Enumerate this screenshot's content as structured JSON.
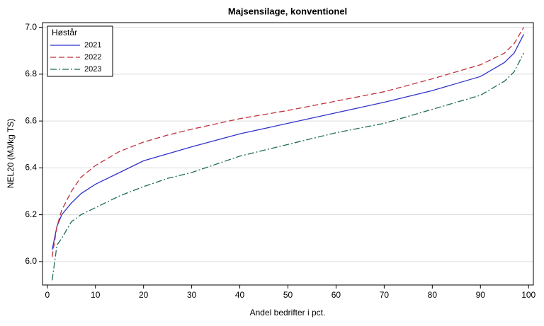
{
  "chart_data": {
    "type": "line",
    "title": "Majsensilage, konventionel",
    "xlabel": "Andel bedrifter i pct.",
    "ylabel": "NEL20 (MJ/kg TS)",
    "legend_title": "Høstår",
    "legend": "upper left",
    "grid": true,
    "x": [
      1,
      2,
      3,
      5,
      7,
      10,
      15,
      20,
      25,
      30,
      40,
      50,
      60,
      70,
      80,
      90,
      95,
      97,
      99
    ],
    "series": [
      {
        "name": "2021",
        "color": "#3333cc",
        "dash": "solid",
        "values": [
          6.05,
          6.15,
          6.2,
          6.25,
          6.29,
          6.33,
          6.38,
          6.43,
          6.46,
          6.49,
          6.545,
          6.59,
          6.635,
          6.68,
          6.73,
          6.79,
          6.85,
          6.89,
          6.97
        ]
      },
      {
        "name": "2022",
        "color": "#c0303c",
        "dash": "dashed",
        "values": [
          6.02,
          6.15,
          6.22,
          6.3,
          6.36,
          6.41,
          6.47,
          6.51,
          6.54,
          6.565,
          6.61,
          6.645,
          6.685,
          6.725,
          6.78,
          6.84,
          6.89,
          6.93,
          7.0
        ]
      },
      {
        "name": "2023",
        "color": "#1f6b5a",
        "dash": "dashdot",
        "values": [
          5.92,
          6.07,
          6.1,
          6.17,
          6.2,
          6.23,
          6.28,
          6.32,
          6.355,
          6.38,
          6.45,
          6.5,
          6.55,
          6.59,
          6.65,
          6.71,
          6.77,
          6.81,
          6.89
        ]
      }
    ],
    "xlim": [
      -1,
      101
    ],
    "xticks": [
      0,
      10,
      20,
      30,
      40,
      50,
      60,
      70,
      80,
      90,
      100
    ],
    "ylim": [
      5.9,
      7.02
    ],
    "yticks": [
      {
        "value": 6,
        "label": "6.0"
      },
      6.2,
      6.4,
      6.6,
      6.8,
      {
        "value": 7,
        "label": "7.0"
      }
    ]
  }
}
